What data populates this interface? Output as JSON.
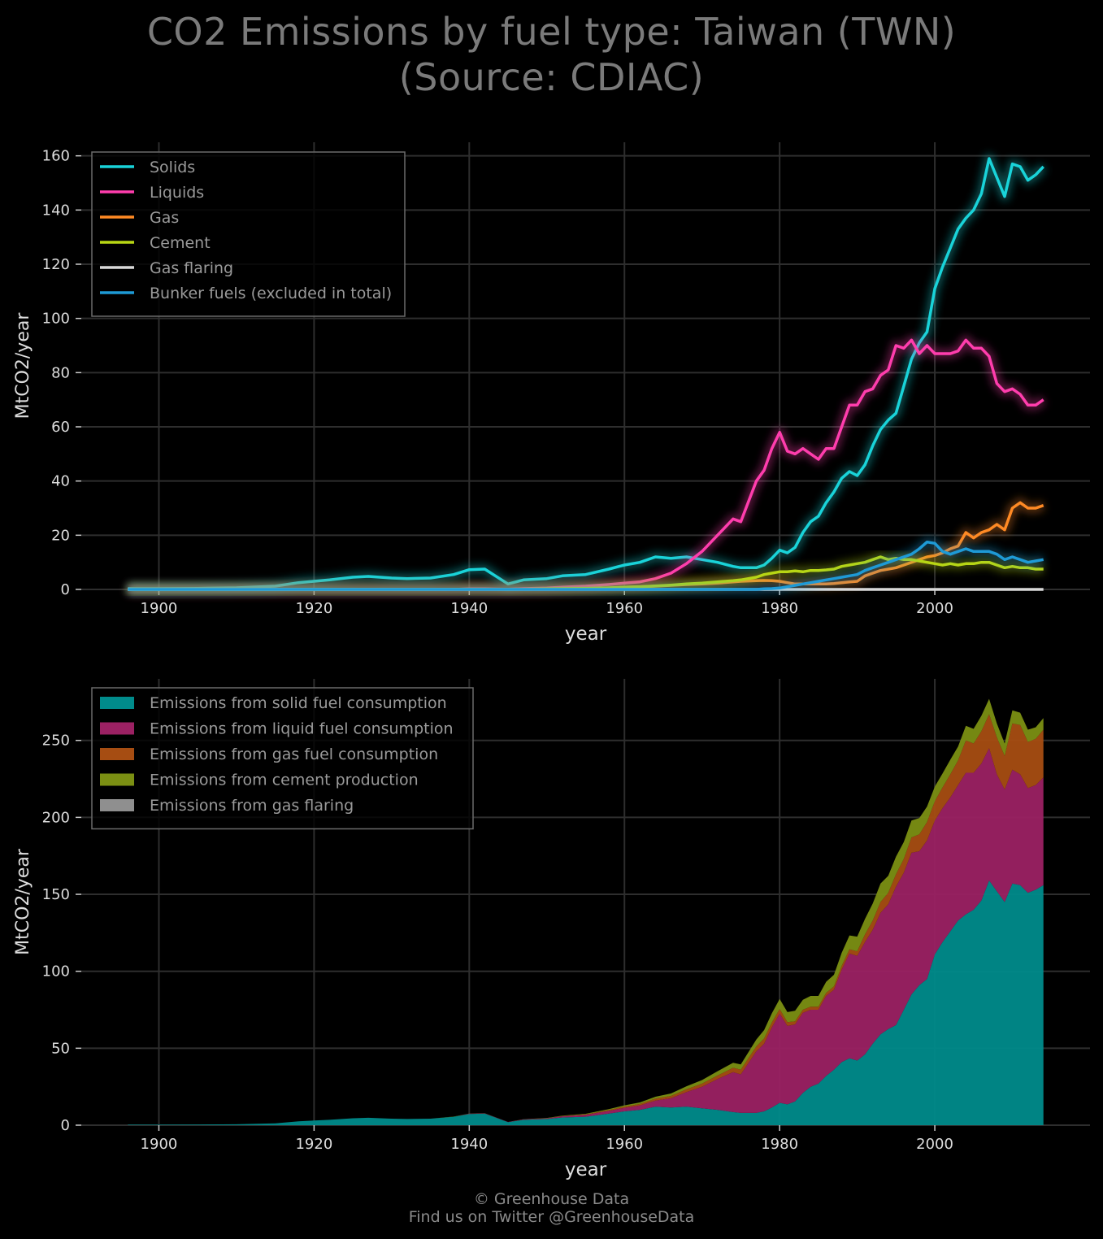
{
  "header": {
    "title_line1": "CO2 Emissions by fuel type: Taiwan (TWN)",
    "title_line2": "(Source: CDIAC)"
  },
  "footer": {
    "line1": "© Greenhouse Data",
    "line2": "Find us on Twitter @GreenhouseData"
  },
  "chart_data": [
    {
      "type": "line",
      "xlabel": "year",
      "ylabel": "MtCO2/year",
      "xlim": [
        1890,
        2020
      ],
      "ylim": [
        0,
        165
      ],
      "xticks": [
        1900,
        1920,
        1940,
        1960,
        1980,
        2000
      ],
      "yticks": [
        0,
        20,
        40,
        60,
        80,
        100,
        120,
        140,
        160
      ],
      "grid": true,
      "legend_position": "top-left",
      "x": [
        1896,
        1900,
        1905,
        1910,
        1915,
        1918,
        1920,
        1922,
        1925,
        1927,
        1930,
        1932,
        1935,
        1938,
        1940,
        1942,
        1945,
        1947,
        1950,
        1952,
        1955,
        1958,
        1960,
        1962,
        1964,
        1966,
        1968,
        1970,
        1972,
        1974,
        1975,
        1977,
        1978,
        1979,
        1980,
        1981,
        1982,
        1983,
        1984,
        1985,
        1986,
        1987,
        1988,
        1989,
        1990,
        1991,
        1992,
        1993,
        1994,
        1995,
        1996,
        1997,
        1998,
        1999,
        2000,
        2001,
        2002,
        2003,
        2004,
        2005,
        2006,
        2007,
        2008,
        2009,
        2010,
        2011,
        2012,
        2013,
        2014
      ],
      "series": [
        {
          "name": "Solids",
          "color": "#19d3d9",
          "values": [
            0.3,
            0.3,
            0.4,
            0.6,
            1.2,
            2.5,
            3.0,
            3.5,
            4.5,
            4.8,
            4.2,
            4.0,
            4.2,
            5.5,
            7.3,
            7.5,
            2.0,
            3.5,
            4.0,
            5.0,
            5.5,
            7.5,
            9.0,
            10.0,
            12.0,
            11.5,
            12.0,
            11.0,
            10.0,
            8.5,
            8.0,
            8.0,
            9.0,
            11.5,
            14.5,
            13.5,
            15.5,
            21.0,
            25.0,
            27.0,
            32.0,
            36.0,
            41.0,
            43.5,
            42.0,
            46.0,
            53.0,
            59.0,
            62.5,
            65.0,
            75.0,
            85.0,
            91.0,
            95.0,
            111.0,
            119.0,
            126.0,
            133.0,
            137.0,
            140.0,
            146.0,
            159.0,
            152.0,
            145.0,
            157.0,
            156.0,
            151.0,
            153.0,
            156.0
          ]
        },
        {
          "name": "Liquids",
          "color": "#ff3dad",
          "values": [
            0.0,
            0.0,
            0.0,
            0.0,
            0.0,
            0.0,
            0.0,
            0.0,
            0.0,
            0.0,
            0.0,
            0.0,
            0.0,
            0.0,
            0.2,
            0.2,
            0.1,
            0.3,
            0.5,
            0.8,
            1.2,
            1.8,
            2.3,
            2.8,
            4.0,
            6.0,
            9.5,
            14.0,
            20.0,
            26.0,
            25.0,
            40.0,
            44.0,
            52.0,
            58.0,
            51.0,
            50.0,
            52.0,
            50.0,
            48.0,
            52.0,
            52.0,
            60.0,
            68.0,
            68.0,
            73.0,
            74.0,
            79.0,
            81.0,
            90.0,
            89.0,
            92.0,
            87.0,
            90.0,
            87.0,
            87.0,
            87.0,
            88.0,
            92.0,
            89.0,
            89.0,
            86.0,
            76.0,
            73.0,
            74.0,
            72.0,
            68.0,
            68.0,
            70.0
          ]
        },
        {
          "name": "Gas",
          "color": "#ff8a24",
          "values": [
            0.0,
            0.0,
            0.0,
            0.0,
            0.0,
            0.0,
            0.0,
            0.0,
            0.0,
            0.0,
            0.0,
            0.0,
            0.0,
            0.0,
            0.0,
            0.0,
            0.0,
            0.0,
            0.0,
            0.1,
            0.3,
            0.5,
            0.8,
            1.0,
            1.2,
            1.5,
            1.8,
            2.0,
            2.3,
            2.8,
            3.0,
            3.2,
            3.3,
            3.2,
            3.0,
            2.5,
            2.0,
            2.0,
            2.0,
            2.0,
            2.0,
            2.2,
            2.5,
            2.8,
            3.0,
            5.0,
            6.0,
            7.0,
            7.5,
            8.0,
            9.0,
            10.0,
            11.0,
            12.0,
            12.5,
            13.5,
            15.0,
            16.0,
            21.0,
            19.0,
            21.0,
            22.0,
            24.0,
            22.0,
            30.0,
            32.0,
            30.0,
            30.0,
            31.0
          ]
        },
        {
          "name": "Cement",
          "color": "#b8d614",
          "values": [
            0.0,
            0.0,
            0.0,
            0.0,
            0.0,
            0.0,
            0.0,
            0.0,
            0.0,
            0.0,
            0.0,
            0.0,
            0.0,
            0.1,
            0.1,
            0.1,
            0.0,
            0.1,
            0.2,
            0.3,
            0.4,
            0.6,
            0.8,
            1.0,
            1.3,
            1.6,
            2.0,
            2.3,
            2.8,
            3.2,
            3.5,
            4.5,
            5.5,
            6.0,
            6.5,
            6.5,
            6.8,
            6.5,
            7.0,
            7.0,
            7.2,
            7.5,
            8.5,
            9.0,
            9.5,
            10.0,
            11.0,
            12.0,
            11.0,
            11.5,
            11.0,
            11.0,
            10.5,
            10.0,
            9.5,
            9.0,
            9.5,
            9.0,
            9.5,
            9.5,
            10.0,
            10.0,
            9.0,
            8.0,
            8.5,
            8.0,
            8.0,
            7.5,
            7.5
          ]
        },
        {
          "name": "Gas flaring",
          "color": "#d9d9d9",
          "values": [
            0.0,
            0.0,
            0.0,
            0.0,
            0.0,
            0.0,
            0.0,
            0.0,
            0.0,
            0.0,
            0.0,
            0.0,
            0.0,
            0.0,
            0.0,
            0.0,
            0.0,
            0.0,
            0.0,
            0.0,
            0.0,
            0.0,
            0.0,
            0.0,
            0.0,
            0.0,
            0.0,
            0.0,
            0.0,
            0.0,
            0.0,
            0.0,
            0.0,
            0.0,
            0.0,
            0.0,
            0.0,
            0.0,
            0.0,
            0.0,
            0.0,
            0.0,
            0.0,
            0.0,
            0.0,
            0.0,
            0.0,
            0.0,
            0.0,
            0.0,
            0.0,
            0.0,
            0.0,
            0.0,
            0.0,
            0.0,
            0.0,
            0.0,
            0.0,
            0.0,
            0.0,
            0.0,
            0.0,
            0.0,
            0.0,
            0.0,
            0.0,
            0.0,
            0.0
          ]
        },
        {
          "name": "Bunker fuels (excluded in total)",
          "color": "#1e9ad6",
          "values": [
            0.0,
            0.0,
            0.0,
            0.0,
            0.0,
            0.0,
            0.0,
            0.0,
            0.0,
            0.0,
            0.0,
            0.0,
            0.0,
            0.0,
            0.0,
            0.0,
            0.0,
            0.0,
            0.0,
            0.0,
            0.0,
            0.0,
            0.0,
            0.0,
            0.0,
            0.0,
            0.0,
            0.0,
            0.0,
            0.0,
            0.0,
            0.0,
            0.2,
            0.3,
            0.5,
            1.0,
            1.5,
            2.0,
            2.5,
            3.0,
            3.5,
            4.0,
            4.5,
            5.0,
            5.5,
            7.0,
            8.0,
            9.0,
            10.0,
            11.0,
            12.0,
            13.0,
            15.0,
            17.5,
            17.0,
            14.0,
            13.0,
            14.0,
            15.0,
            14.0,
            14.0,
            14.0,
            13.0,
            11.0,
            12.0,
            11.0,
            10.0,
            10.5,
            11.0
          ]
        }
      ]
    },
    {
      "type": "area",
      "stacked": true,
      "xlabel": "year",
      "ylabel": "MtCO2/year",
      "xlim": [
        1890,
        2020
      ],
      "ylim": [
        0,
        290
      ],
      "xticks": [
        1900,
        1920,
        1940,
        1960,
        1980,
        2000
      ],
      "yticks": [
        0,
        50,
        100,
        150,
        200,
        250
      ],
      "grid": true,
      "legend_position": "top-left",
      "series": [
        {
          "name": "Emissions from solid fuel consumption",
          "color": "#008b8b",
          "source": "Solids"
        },
        {
          "name": "Emissions from liquid fuel consumption",
          "color": "#9b2163",
          "source": "Liquids"
        },
        {
          "name": "Emissions from gas fuel consumption",
          "color": "#a64d12",
          "source": "Gas"
        },
        {
          "name": "Emissions from cement production",
          "color": "#7b8f13",
          "source": "Cement"
        },
        {
          "name": "Emissions from gas flaring",
          "color": "#8f8f8f",
          "source": "Gas flaring"
        }
      ]
    }
  ]
}
